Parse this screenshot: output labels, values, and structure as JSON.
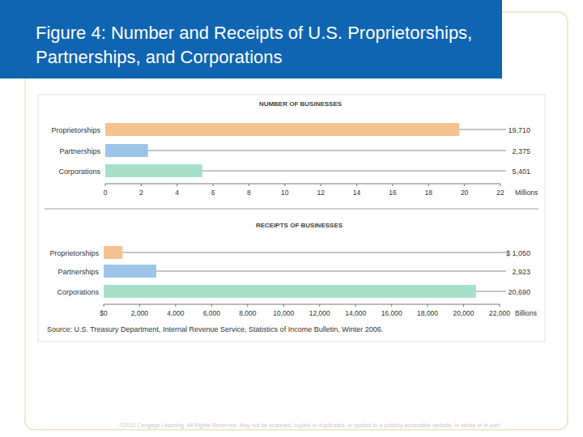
{
  "header": {
    "title": "Figure 4: Number and Receipts of U.S. Proprietorships, Partnerships, and Corporations"
  },
  "chart_data": [
    {
      "type": "bar",
      "orientation": "horizontal",
      "title": "NUMBER OF BUSINESSES",
      "categories": [
        "Proprietorships",
        "Partnerships",
        "Corporations"
      ],
      "values": [
        19.71,
        2.375,
        5.401
      ],
      "value_labels": [
        "19,710",
        "2,375",
        "5,401"
      ],
      "colors": [
        "#f4c28f",
        "#9ec4ea",
        "#a7e0c9"
      ],
      "xlim": [
        0,
        22
      ],
      "xticks": [
        0,
        2,
        4,
        6,
        8,
        10,
        12,
        14,
        16,
        18,
        20,
        22
      ],
      "x_label": "Millions",
      "data_labels": true,
      "grid": false
    },
    {
      "type": "bar",
      "orientation": "horizontal",
      "title": "RECEIPTS OF BUSINESSES",
      "categories": [
        "Proprietorships",
        "Partnerships",
        "Corporations"
      ],
      "values": [
        1050,
        2923,
        20690
      ],
      "value_labels": [
        "$ 1,050",
        "2,923",
        "20,690"
      ],
      "colors": [
        "#f4c28f",
        "#9ec4ea",
        "#a7e0c9"
      ],
      "xlim": [
        0,
        22000
      ],
      "xticks": [
        {
          "value": 0,
          "label": "$0"
        },
        {
          "value": 2000,
          "label": "2,000"
        },
        {
          "value": 4000,
          "label": "4,000"
        },
        {
          "value": 6000,
          "label": "6,000"
        },
        {
          "value": 8000,
          "label": "8,000"
        },
        {
          "value": 10000,
          "label": "10,000"
        },
        {
          "value": 12000,
          "label": "12,000"
        },
        {
          "value": 14000,
          "label": "14,000"
        },
        {
          "value": 16000,
          "label": "16,000"
        },
        {
          "value": 18000,
          "label": "18,000"
        },
        {
          "value": 20000,
          "label": "20,000"
        },
        {
          "value": 22000,
          "label": "22,000"
        }
      ],
      "x_label": "Billions",
      "data_labels": true,
      "grid": false,
      "note": "Source: U.S. Treasury Department, Internal Revenue Service, Statistics of Income Bulletin, Winter 2006."
    }
  ],
  "footer": "©2011 Cengage Learning. All Rights Reserved. May not be scanned, copied or duplicated, or posted to a publicly accessible website, in whole or in part."
}
